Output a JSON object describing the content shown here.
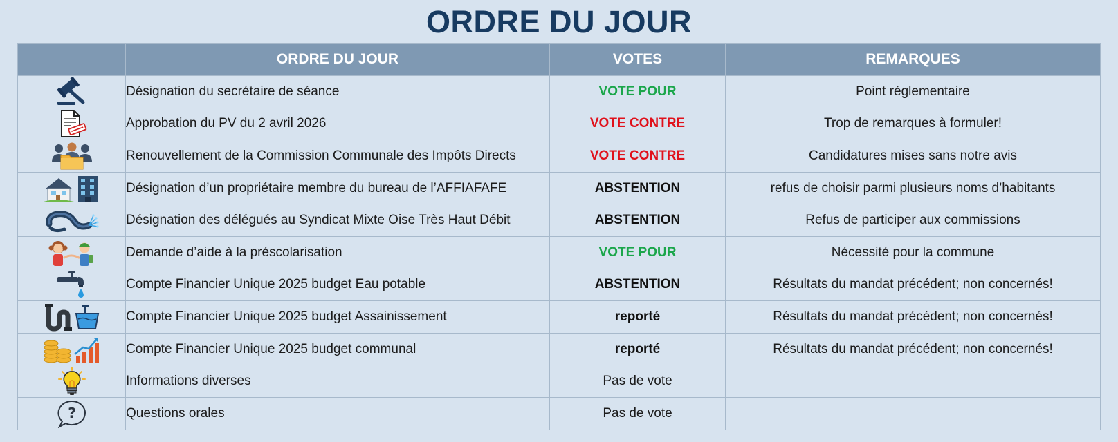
{
  "page_title": "ORDRE DU JOUR",
  "columns": {
    "icon": "",
    "item": "ORDRE DU JOUR",
    "vote": "VOTES",
    "remark": "REMARQUES"
  },
  "rows": [
    {
      "icon": "gavel-icon",
      "item": "Désignation du secrétaire de séance",
      "vote": "VOTE POUR",
      "vote_type": "pour",
      "remark": "Point réglementaire"
    },
    {
      "icon": "document-stamp-icon",
      "item": "Approbation du PV du 2 avril 2026",
      "vote": "VOTE CONTRE",
      "vote_type": "contre",
      "remark": "Trop de remarques à formuler!"
    },
    {
      "icon": "committee-icon",
      "item": "Renouvellement de la Commission Communale des Impôts Directs",
      "vote": "VOTE CONTRE",
      "vote_type": "contre",
      "remark": "Candidatures mises sans notre avis"
    },
    {
      "icon": "house-building-icon",
      "item": "Désignation d’un propriétaire membre du bureau de l’AFFIAFAFE",
      "vote": "ABSTENTION",
      "vote_type": "abstention",
      "remark": "refus de choisir parmi plusieurs noms d’habitants"
    },
    {
      "icon": "fiber-cable-icon",
      "item": "Désignation des délégués au Syndicat Mixte Oise Très Haut Débit",
      "vote": "ABSTENTION",
      "vote_type": "abstention",
      "remark": "Refus de participer aux commissions"
    },
    {
      "icon": "children-icon",
      "item": "Demande d’aide à la préscolarisation",
      "vote": "VOTE POUR",
      "vote_type": "pour",
      "remark": "Nécessité pour la commune"
    },
    {
      "icon": "water-tap-icon",
      "item": "Compte Financier Unique 2025 budget Eau potable",
      "vote": "ABSTENTION",
      "vote_type": "abstention",
      "remark": "Résultats du mandat précédent; non concernés!"
    },
    {
      "icon": "sewage-pipe-icon",
      "item": "Compte Financier Unique 2025 budget Assainissement",
      "vote": "reporté",
      "vote_type": "reporte",
      "remark": "Résultats du mandat précédent; non concernés!"
    },
    {
      "icon": "coins-chart-icon",
      "item": "Compte Financier Unique 2025 budget communal",
      "vote": "reporté",
      "vote_type": "reporte",
      "remark": "Résultats du mandat précédent; non concernés!"
    },
    {
      "icon": "lightbulb-icon",
      "item": "Informations diverses",
      "vote": "Pas de vote",
      "vote_type": "none",
      "remark": ""
    },
    {
      "icon": "question-bubble-icon",
      "item": "Questions orales",
      "vote": "Pas de vote",
      "vote_type": "none",
      "remark": ""
    }
  ],
  "colors": {
    "background": "#d7e3ef",
    "header_bg": "#7f99b3",
    "title": "#173a60",
    "vote_pour": "#1aa64a",
    "vote_contre": "#e0111b"
  }
}
